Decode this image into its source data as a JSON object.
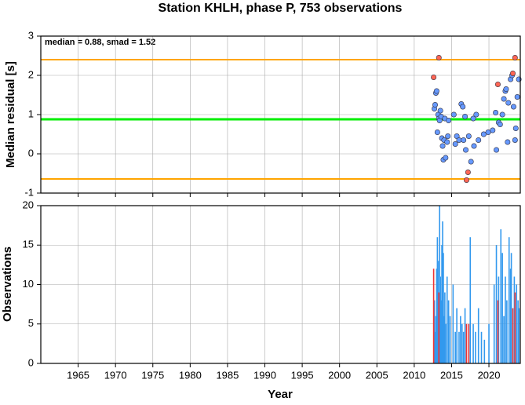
{
  "title": "Station KHLH, phase P, 753 observations",
  "chart_data": [
    {
      "type": "scatter",
      "ylabel": "Median residual [s]",
      "annotation": "median = 0.88, smad = 1.52",
      "xlim": [
        1960,
        2024.2
      ],
      "ylim": [
        -1,
        3
      ],
      "yticks": [
        -1,
        0,
        1,
        2,
        3
      ],
      "grid": true,
      "reference_lines": [
        {
          "value": 2.4,
          "color": "#ffa500"
        },
        {
          "value": 0.88,
          "color": "#00ee00"
        },
        {
          "value": -0.64,
          "color": "#ffa500"
        }
      ],
      "series": [
        {
          "color": "#6699ff",
          "x": [
            2012.7,
            2012.8,
            2012.9,
            2013.0,
            2013.1,
            2013.2,
            2013.3,
            2013.4,
            2013.5,
            2013.6,
            2013.7,
            2013.8,
            2013.9,
            2014.0,
            2014.1,
            2014.2,
            2014.4,
            2014.5,
            2014.6,
            2015.3,
            2015.5,
            2015.7,
            2016.0,
            2016.3,
            2016.5,
            2016.6,
            2016.8,
            2016.9,
            2017.3,
            2017.6,
            2017.9,
            2018.0,
            2018.3,
            2018.6,
            2019.3,
            2019.9,
            2020.5,
            2020.9,
            2021.0,
            2021.3,
            2021.5,
            2021.8,
            2022.0,
            2022.2,
            2022.3,
            2022.5,
            2022.6,
            2022.9,
            2023.1,
            2023.3,
            2023.5,
            2023.6,
            2023.8,
            2024.0
          ],
          "values": [
            1.15,
            1.25,
            1.55,
            1.6,
            0.55,
            1.0,
            0.9,
            0.85,
            1.1,
            0.95,
            0.4,
            0.2,
            -0.15,
            0.35,
            0.9,
            -0.1,
            0.3,
            0.45,
            0.85,
            1.0,
            0.25,
            0.45,
            0.35,
            1.27,
            1.2,
            0.35,
            0.95,
            0.1,
            0.45,
            -0.2,
            0.9,
            0.2,
            1.0,
            0.35,
            0.5,
            0.55,
            0.6,
            1.05,
            0.1,
            0.8,
            0.75,
            1.0,
            1.4,
            1.6,
            1.65,
            0.3,
            1.3,
            1.9,
            2.0,
            1.2,
            0.35,
            0.65,
            1.45,
            1.9
          ]
        },
        {
          "color": "#ff6655",
          "x": [
            2012.6,
            2013.3,
            2017.0,
            2017.2,
            2021.2,
            2023.2,
            2023.5
          ],
          "values": [
            1.95,
            2.45,
            -0.67,
            -0.47,
            1.77,
            2.05,
            2.45
          ]
        }
      ]
    },
    {
      "type": "bar",
      "ylabel": "Observations",
      "xlabel": "Year",
      "xlim": [
        1960,
        2024.2
      ],
      "xticks": [
        1965,
        1970,
        1975,
        1980,
        1985,
        1990,
        1995,
        2000,
        2005,
        2010,
        2015,
        2020
      ],
      "ylim": [
        0,
        20
      ],
      "yticks": [
        0,
        5,
        10,
        15,
        20
      ],
      "grid": true,
      "series": [
        {
          "color": "#3399ee",
          "x": [
            2012.7,
            2012.8,
            2012.9,
            2013.0,
            2013.1,
            2013.2,
            2013.4,
            2013.5,
            2013.6,
            2013.7,
            2013.8,
            2013.9,
            2014.0,
            2014.1,
            2014.2,
            2014.4,
            2014.6,
            2014.8,
            2015.2,
            2015.5,
            2015.7,
            2016.0,
            2016.2,
            2016.4,
            2016.6,
            2016.8,
            2017.5,
            2017.9,
            2018.2,
            2018.6,
            2019.0,
            2019.4,
            2020.0,
            2020.7,
            2021.0,
            2021.3,
            2021.6,
            2021.8,
            2022.0,
            2022.2,
            2022.4,
            2022.7,
            2022.9,
            2023.0,
            2023.4,
            2023.7,
            2023.9,
            2024.0
          ],
          "values": [
            8,
            4,
            6,
            12,
            16,
            13,
            20,
            11,
            8,
            15,
            18,
            14,
            6,
            9,
            5,
            11,
            8,
            6,
            10,
            4,
            7,
            4,
            6,
            5,
            4,
            7,
            16,
            5,
            4,
            7,
            4,
            3,
            5,
            10,
            15,
            11,
            17,
            14,
            6,
            11,
            8,
            16,
            12,
            14,
            11,
            10,
            8,
            7
          ]
        },
        {
          "color": "#ee3333",
          "x": [
            2012.6,
            2013.3,
            2017.0,
            2017.3,
            2021.2,
            2023.2,
            2023.5
          ],
          "values": [
            12,
            9,
            5,
            5,
            8,
            7,
            9
          ]
        }
      ]
    }
  ]
}
